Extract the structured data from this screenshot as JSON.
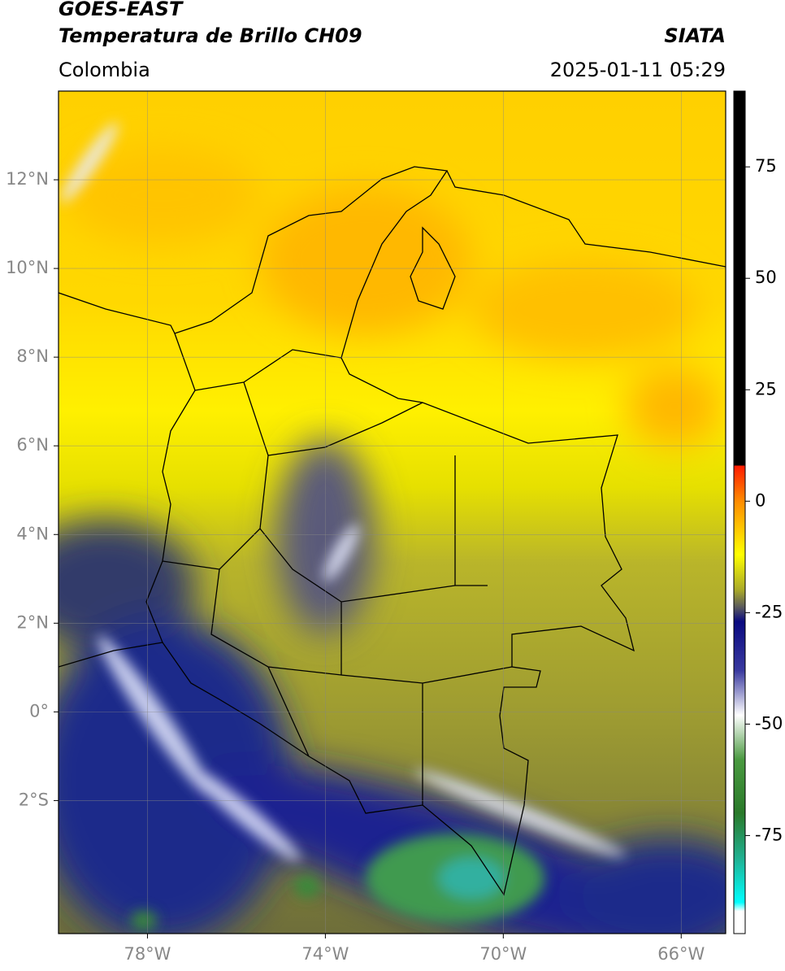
{
  "header": {
    "title": "GOES-EAST",
    "subtitle": "Temperatura de Brillo CH09",
    "source": "SIATA",
    "region": "Colombia",
    "timestamp": "2025-01-11 05:29"
  },
  "map": {
    "xlim": [
      -80,
      -65
    ],
    "ylim": [
      -5,
      14
    ],
    "xticks": [
      {
        "value": -78,
        "label": "78°W"
      },
      {
        "value": -74,
        "label": "74°W"
      },
      {
        "value": -70,
        "label": "70°W"
      },
      {
        "value": -66,
        "label": "66°W"
      }
    ],
    "yticks": [
      {
        "value": 12,
        "label": "12°N"
      },
      {
        "value": 10,
        "label": "10°N"
      },
      {
        "value": 8,
        "label": "8°N"
      },
      {
        "value": 6,
        "label": "6°N"
      },
      {
        "value": 4,
        "label": "4°N"
      },
      {
        "value": 2,
        "label": "2°N"
      },
      {
        "value": 0,
        "label": "0°"
      },
      {
        "value": -2,
        "label": "2°S"
      }
    ],
    "grid": true
  },
  "colorbar": {
    "lim": [
      -97,
      92
    ],
    "ticks": [
      75,
      50,
      25,
      0,
      -25,
      -50,
      -75
    ],
    "colormap": [
      {
        "value": 92,
        "color": "#000000"
      },
      {
        "value": 8,
        "color": "#000000"
      },
      {
        "value": 8,
        "color": "#ff1a00"
      },
      {
        "value": 0,
        "color": "#ff8c00"
      },
      {
        "value": -12,
        "color": "#ffff00"
      },
      {
        "value": -20,
        "color": "#a8a82a"
      },
      {
        "value": -24,
        "color": "#555560"
      },
      {
        "value": -27,
        "color": "#0a0a80"
      },
      {
        "value": -38,
        "color": "#3a3aa0"
      },
      {
        "value": -48,
        "color": "#ffffff"
      },
      {
        "value": -58,
        "color": "#4a9a40"
      },
      {
        "value": -70,
        "color": "#2a7a2a"
      },
      {
        "value": -80,
        "color": "#20b090"
      },
      {
        "value": -90,
        "color": "#00ffff"
      },
      {
        "value": -92,
        "color": "#ffffff"
      },
      {
        "value": -97,
        "color": "#ffffff"
      }
    ]
  }
}
